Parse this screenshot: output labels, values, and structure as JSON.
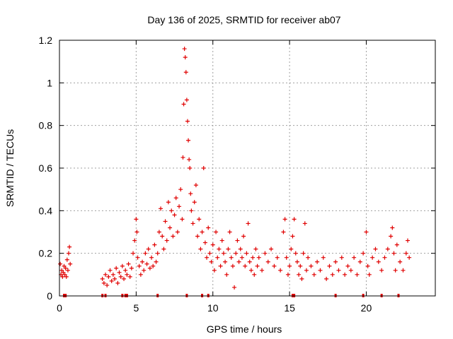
{
  "chart_data": {
    "type": "scatter",
    "title": "Day 136 of 2025, SRMTID for receiver ab07",
    "xlabel": "GPS time / hours",
    "ylabel": "SRMTID / TECUs",
    "xlim": [
      0,
      24.5
    ],
    "ylim": [
      0,
      1.2
    ],
    "xticks": [
      0,
      5,
      10,
      15,
      20
    ],
    "yticks": [
      0,
      0.2,
      0.4,
      0.6,
      0.8,
      1,
      1.2
    ],
    "xtick_labels": [
      "0",
      "5",
      "10",
      "15",
      "20"
    ],
    "ytick_labels": [
      "0",
      "0.2",
      "0.4",
      "0.6",
      "0.8",
      "1",
      "1.2"
    ],
    "grid": true,
    "marker": "+",
    "color": "#e00000",
    "series": [
      {
        "name": "SRMTID",
        "points": [
          [
            0.05,
            0.15
          ],
          [
            0.1,
            0.1
          ],
          [
            0.15,
            0.12
          ],
          [
            0.2,
            0.09
          ],
          [
            0.25,
            0.11
          ],
          [
            0.3,
            0.14
          ],
          [
            0.35,
            0.1
          ],
          [
            0.4,
            0.13
          ],
          [
            0.45,
            0.09
          ],
          [
            0.5,
            0.17
          ],
          [
            0.55,
            0.12
          ],
          [
            0.6,
            0.2
          ],
          [
            0.65,
            0.23
          ],
          [
            0.7,
            0.15
          ],
          [
            2.8,
            0.08
          ],
          [
            2.9,
            0.06
          ],
          [
            3.0,
            0.1
          ],
          [
            3.1,
            0.05
          ],
          [
            3.2,
            0.09
          ],
          [
            3.3,
            0.12
          ],
          [
            3.4,
            0.07
          ],
          [
            3.5,
            0.1
          ],
          [
            3.6,
            0.08
          ],
          [
            3.7,
            0.13
          ],
          [
            3.8,
            0.06
          ],
          [
            3.9,
            0.11
          ],
          [
            4.0,
            0.09
          ],
          [
            4.1,
            0.14
          ],
          [
            4.2,
            0.08
          ],
          [
            4.3,
            0.12
          ],
          [
            4.4,
            0.1
          ],
          [
            4.5,
            0.15
          ],
          [
            4.6,
            0.09
          ],
          [
            4.7,
            0.13
          ],
          [
            4.8,
            0.2
          ],
          [
            4.9,
            0.26
          ],
          [
            5.0,
            0.36
          ],
          [
            5.05,
            0.3
          ],
          [
            5.1,
            0.18
          ],
          [
            5.2,
            0.14
          ],
          [
            5.3,
            0.1
          ],
          [
            5.4,
            0.16
          ],
          [
            5.5,
            0.12
          ],
          [
            5.6,
            0.2
          ],
          [
            5.7,
            0.15
          ],
          [
            5.8,
            0.22
          ],
          [
            5.9,
            0.13
          ],
          [
            6.0,
            0.18
          ],
          [
            6.1,
            0.14
          ],
          [
            6.2,
            0.24
          ],
          [
            6.3,
            0.16
          ],
          [
            6.4,
            0.2
          ],
          [
            6.5,
            0.3
          ],
          [
            6.6,
            0.41
          ],
          [
            6.7,
            0.28
          ],
          [
            6.8,
            0.22
          ],
          [
            6.9,
            0.35
          ],
          [
            7.0,
            0.26
          ],
          [
            7.1,
            0.44
          ],
          [
            7.2,
            0.32
          ],
          [
            7.3,
            0.4
          ],
          [
            7.4,
            0.28
          ],
          [
            7.5,
            0.38
          ],
          [
            7.6,
            0.46
          ],
          [
            7.7,
            0.3
          ],
          [
            7.8,
            0.42
          ],
          [
            7.9,
            0.5
          ],
          [
            8.0,
            0.36
          ],
          [
            8.05,
            0.65
          ],
          [
            8.1,
            0.9
          ],
          [
            8.15,
            1.16
          ],
          [
            8.2,
            1.12
          ],
          [
            8.25,
            1.05
          ],
          [
            8.3,
            0.92
          ],
          [
            8.35,
            0.82
          ],
          [
            8.4,
            0.73
          ],
          [
            8.45,
            0.64
          ],
          [
            8.5,
            0.6
          ],
          [
            8.55,
            0.48
          ],
          [
            8.6,
            0.4
          ],
          [
            8.7,
            0.34
          ],
          [
            8.8,
            0.44
          ],
          [
            8.9,
            0.52
          ],
          [
            9.0,
            0.28
          ],
          [
            9.1,
            0.36
          ],
          [
            9.2,
            0.22
          ],
          [
            9.3,
            0.3
          ],
          [
            9.4,
            0.6
          ],
          [
            9.5,
            0.25
          ],
          [
            9.6,
            0.18
          ],
          [
            9.7,
            0.32
          ],
          [
            9.8,
            0.2
          ],
          [
            9.9,
            0.16
          ],
          [
            10.0,
            0.24
          ],
          [
            10.1,
            0.12
          ],
          [
            10.2,
            0.3
          ],
          [
            10.3,
            0.18
          ],
          [
            10.4,
            0.22
          ],
          [
            10.5,
            0.14
          ],
          [
            10.6,
            0.26
          ],
          [
            10.7,
            0.2
          ],
          [
            10.8,
            0.16
          ],
          [
            10.9,
            0.1
          ],
          [
            11.0,
            0.22
          ],
          [
            11.1,
            0.3
          ],
          [
            11.2,
            0.18
          ],
          [
            11.3,
            0.14
          ],
          [
            11.4,
            0.04
          ],
          [
            11.5,
            0.2
          ],
          [
            11.6,
            0.26
          ],
          [
            11.7,
            0.16
          ],
          [
            11.8,
            0.22
          ],
          [
            11.9,
            0.18
          ],
          [
            12.0,
            0.28
          ],
          [
            12.1,
            0.14
          ],
          [
            12.2,
            0.2
          ],
          [
            12.3,
            0.34
          ],
          [
            12.4,
            0.16
          ],
          [
            12.5,
            0.12
          ],
          [
            12.6,
            0.18
          ],
          [
            12.7,
            0.1
          ],
          [
            12.8,
            0.22
          ],
          [
            12.9,
            0.14
          ],
          [
            13.0,
            0.18
          ],
          [
            13.2,
            0.12
          ],
          [
            13.4,
            0.2
          ],
          [
            13.6,
            0.16
          ],
          [
            13.8,
            0.22
          ],
          [
            14.0,
            0.14
          ],
          [
            14.2,
            0.18
          ],
          [
            14.4,
            0.12
          ],
          [
            14.6,
            0.3
          ],
          [
            14.7,
            0.36
          ],
          [
            14.8,
            0.18
          ],
          [
            14.9,
            0.1
          ],
          [
            15.0,
            0.14
          ],
          [
            15.1,
            0.22
          ],
          [
            15.2,
            0.28
          ],
          [
            15.3,
            0.36
          ],
          [
            15.4,
            0.2
          ],
          [
            15.5,
            0.16
          ],
          [
            15.6,
            0.1
          ],
          [
            15.7,
            0.14
          ],
          [
            15.8,
            0.08
          ],
          [
            15.9,
            0.2
          ],
          [
            16.0,
            0.34
          ],
          [
            16.1,
            0.12
          ],
          [
            16.2,
            0.18
          ],
          [
            16.4,
            0.14
          ],
          [
            16.6,
            0.1
          ],
          [
            16.8,
            0.16
          ],
          [
            17.0,
            0.12
          ],
          [
            17.2,
            0.18
          ],
          [
            17.4,
            0.08
          ],
          [
            17.6,
            0.14
          ],
          [
            17.8,
            0.1
          ],
          [
            18.0,
            0.16
          ],
          [
            18.2,
            0.12
          ],
          [
            18.4,
            0.18
          ],
          [
            18.6,
            0.1
          ],
          [
            18.8,
            0.14
          ],
          [
            19.0,
            0.12
          ],
          [
            19.2,
            0.18
          ],
          [
            19.4,
            0.1
          ],
          [
            19.6,
            0.16
          ],
          [
            19.8,
            0.2
          ],
          [
            20.0,
            0.3
          ],
          [
            20.1,
            0.14
          ],
          [
            20.2,
            0.1
          ],
          [
            20.4,
            0.18
          ],
          [
            20.6,
            0.22
          ],
          [
            20.8,
            0.16
          ],
          [
            21.0,
            0.12
          ],
          [
            21.2,
            0.18
          ],
          [
            21.4,
            0.22
          ],
          [
            21.6,
            0.28
          ],
          [
            21.7,
            0.32
          ],
          [
            21.8,
            0.2
          ],
          [
            21.9,
            0.12
          ],
          [
            22.0,
            0.24
          ],
          [
            22.2,
            0.16
          ],
          [
            22.4,
            0.12
          ],
          [
            22.6,
            0.2
          ],
          [
            22.7,
            0.26
          ],
          [
            22.8,
            0.18
          ]
        ]
      }
    ],
    "baseline_markers_x": [
      0.3,
      0.4,
      2.8,
      3.0,
      4.1,
      4.3,
      4.4,
      6.4,
      8.3,
      9.3,
      9.7,
      15.2,
      15.3,
      18.0,
      19.8,
      21.0,
      22.1
    ]
  }
}
